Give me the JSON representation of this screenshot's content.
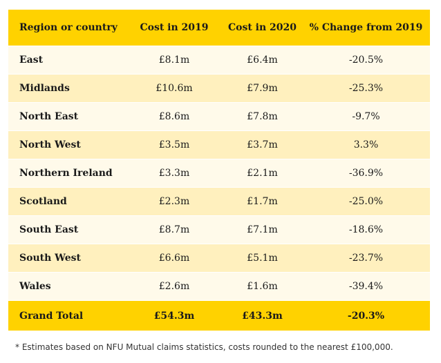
{
  "table": {
    "headers": [
      "Region or country",
      "Cost in 2019",
      "Cost in 2020",
      "% Change from 2019"
    ],
    "rows": [
      [
        "East",
        "£8.1m",
        "£6.4m",
        "-20.5%"
      ],
      [
        "Midlands",
        "£10.6m",
        "£7.9m",
        "-25.3%"
      ],
      [
        "North East",
        "£8.6m",
        "£7.8m",
        "-9.7%"
      ],
      [
        "North West",
        "£3.5m",
        "£3.7m",
        "3.3%"
      ],
      [
        "Northern Ireland",
        "£3.3m",
        "£2.1m",
        "-36.9%"
      ],
      [
        "Scotland",
        "£2.3m",
        "£1.7m",
        "-25.0%"
      ],
      [
        "South East",
        "£8.7m",
        "£7.1m",
        "-18.6%"
      ],
      [
        "South West",
        "£6.6m",
        "£5.1m",
        "-23.7%"
      ],
      [
        "Wales",
        "£2.6m",
        "£1.6m",
        "-39.4%"
      ]
    ],
    "total": [
      "Grand Total",
      "£54.3m",
      "£43.3m",
      "-20.3%"
    ]
  },
  "footnote": "* Estimates based on NFU Mutual claims statistics, costs rounded to the nearest £100,000.",
  "colors": {
    "header_background": "#ffd200",
    "row_light": "#fffaea",
    "row_dark": "#fff0be"
  }
}
